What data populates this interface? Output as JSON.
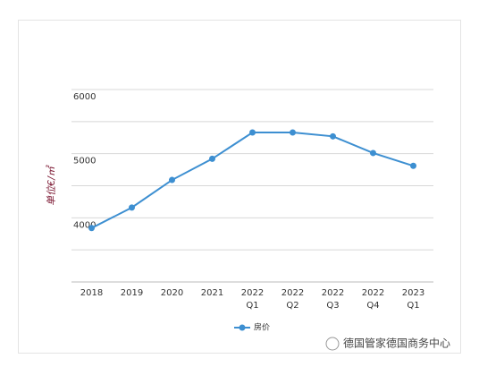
{
  "chart_data": {
    "type": "line",
    "y_label": "单位€/㎡",
    "categories": [
      [
        "2018"
      ],
      [
        "2019"
      ],
      [
        "2020"
      ],
      [
        "2021"
      ],
      [
        "2022",
        "Q1"
      ],
      [
        "2022",
        "Q2"
      ],
      [
        "2022",
        "Q3"
      ],
      [
        "2022",
        "Q4"
      ],
      [
        "2023",
        "Q1"
      ]
    ],
    "series": [
      {
        "name": "房价",
        "color": "#3d8fd1",
        "values": [
          3840,
          4160,
          4590,
          4920,
          5330,
          5330,
          5270,
          5010,
          4810
        ]
      }
    ],
    "ylim": [
      3000,
      6000
    ],
    "yticks": [
      4000,
      5000,
      6000
    ],
    "minor_grid": [
      3500,
      4500,
      5500
    ],
    "grid": true,
    "legend": "bottom"
  },
  "watermark": "德国管家德国商务中心"
}
